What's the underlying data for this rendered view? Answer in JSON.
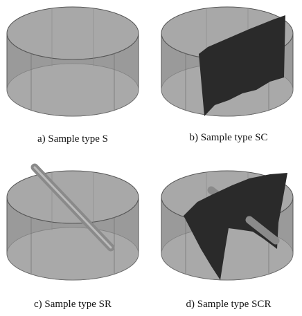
{
  "panels": [
    {
      "caption": "a) Sample type S"
    },
    {
      "caption": "b) Sample type SC"
    },
    {
      "caption": "c) Sample type SR"
    },
    {
      "caption": "d) Sample type SCR"
    }
  ]
}
